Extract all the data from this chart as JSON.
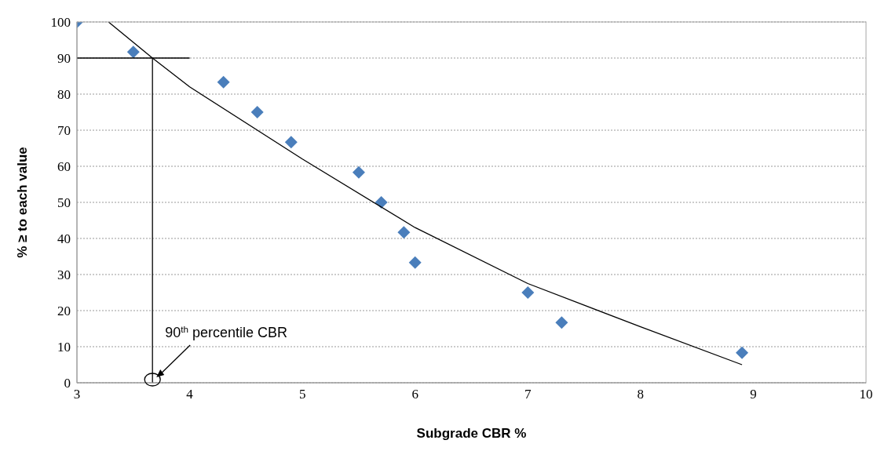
{
  "chart_data": {
    "type": "scatter",
    "xlabel": "Subgrade CBR %",
    "ylabel": "% ≥ to each value",
    "xlim": [
      3,
      10
    ],
    "xticks": [
      3,
      4,
      5,
      6,
      7,
      8,
      9,
      10
    ],
    "ylim": [
      0,
      100
    ],
    "yticks": [
      0,
      10,
      20,
      30,
      40,
      50,
      60,
      70,
      80,
      90,
      100
    ],
    "grid": "y",
    "series": [
      {
        "marker": "diamond",
        "color": "#4a7ebb",
        "x": [
          3,
          3.5,
          4.3,
          4.6,
          4.9,
          5.5,
          5.7,
          5.9,
          6,
          7,
          7.3,
          8.9
        ],
        "values": [
          100,
          91.7,
          83.3,
          75,
          66.7,
          58.3,
          50,
          41.7,
          33.3,
          25,
          16.7,
          8.3
        ]
      },
      {
        "type": "line",
        "marker": "none",
        "color": "#000000",
        "x": [
          3.28,
          3.67,
          4,
          5,
          6,
          7,
          8,
          8.9
        ],
        "values": [
          100,
          90,
          82,
          62,
          43,
          27.5,
          15.5,
          5
        ]
      },
      {
        "type": "line",
        "marker": "none",
        "color": "#000000",
        "x": [
          3,
          4
        ],
        "values": [
          90,
          90
        ]
      },
      {
        "type": "line",
        "marker": "none",
        "color": "#000000",
        "x": [
          3.67,
          3.67
        ],
        "values": [
          0,
          90
        ]
      }
    ],
    "annotations": [
      "90$^{th}$ percentile CBR"
    ]
  }
}
